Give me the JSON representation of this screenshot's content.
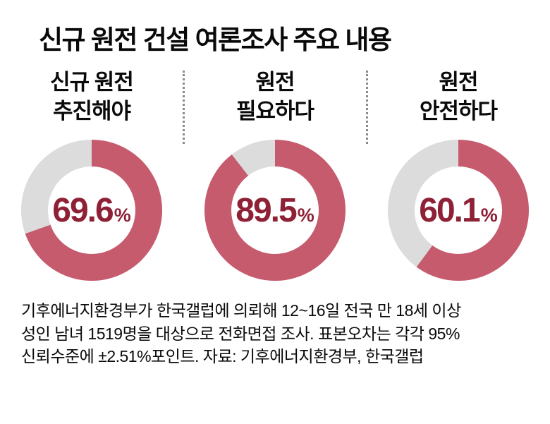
{
  "title": "신규 원전 건설 여론조사 주요 내용",
  "colors": {
    "accent": "#c65b6e",
    "track": "#dcdcdc",
    "value_text": "#8e2136"
  },
  "chart_data": {
    "type": "pie",
    "variant": "donut",
    "unit": "%",
    "charts": [
      {
        "label_lines": [
          "신규 원전",
          "추진해야"
        ],
        "value": 69.6,
        "display": "69.6",
        "unit": "%"
      },
      {
        "label_lines": [
          "원전",
          "필요하다"
        ],
        "value": 89.5,
        "display": "89.5",
        "unit": "%"
      },
      {
        "label_lines": [
          "원전",
          "안전하다"
        ],
        "value": 60.1,
        "display": "60.1",
        "unit": "%"
      }
    ]
  },
  "footer": {
    "lines": [
      "기후에너지환경부가 한국갤럽에 의뢰해 12~16일 전국 만 18세 이상",
      "성인 남녀 1519명을 대상으로 전화면접 조사. 표본오차는 각각 95%",
      "신뢰수준에 ±2.51%포인트. 자료: 기후에너지환경부, 한국갤럽"
    ]
  }
}
